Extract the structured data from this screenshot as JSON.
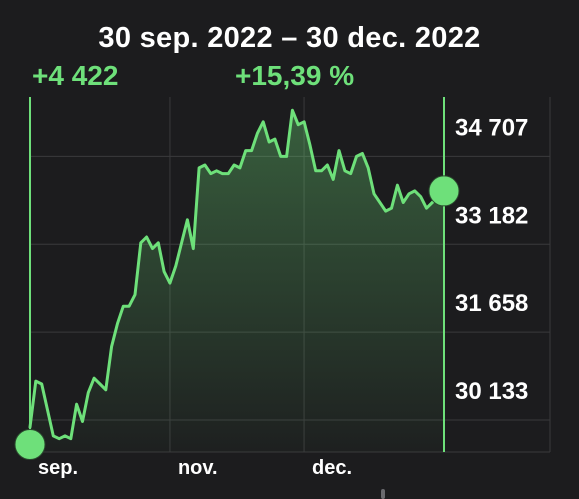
{
  "header": {
    "title": "30 sep. 2022 – 30 dec. 2022",
    "change_abs": "+4 422",
    "change_pct": "+15,39 %"
  },
  "colors": {
    "background": "#1c1c1e",
    "accent": "#6ee07a",
    "grid": "#3a3a3c",
    "text": "#ffffff"
  },
  "chart_data": {
    "type": "area",
    "y_ticks": [
      "34 707",
      "33 182",
      "31 658",
      "30 133"
    ],
    "y_tick_values": [
      34707,
      33182,
      31658,
      30133
    ],
    "x_ticks": [
      "sep.",
      "nov.",
      "dec."
    ],
    "ylim": [
      28970,
      35130
    ],
    "x_index_range": [
      0,
      71
    ],
    "x_tick_indices": [
      0,
      24,
      47
    ],
    "start_marker_value": 29100,
    "end_marker_value": 33500,
    "values": [
      29400,
      30200,
      30150,
      29700,
      29250,
      29200,
      29250,
      29200,
      29800,
      29500,
      30000,
      30250,
      30150,
      30050,
      30800,
      31200,
      31500,
      31500,
      31700,
      32600,
      32700,
      32500,
      32600,
      32100,
      31900,
      32200,
      32600,
      33000,
      32500,
      33900,
      33950,
      33800,
      33850,
      33800,
      33800,
      33950,
      33900,
      34200,
      34200,
      34500,
      34700,
      34350,
      34400,
      34100,
      34100,
      34900,
      34650,
      34700,
      34300,
      33850,
      33850,
      33950,
      33700,
      34200,
      33850,
      33800,
      34100,
      34150,
      33900,
      33450,
      33300,
      33150,
      33200,
      33600,
      33300,
      33450,
      33500,
      33400,
      33200,
      33300,
      33400,
      33400
    ]
  }
}
